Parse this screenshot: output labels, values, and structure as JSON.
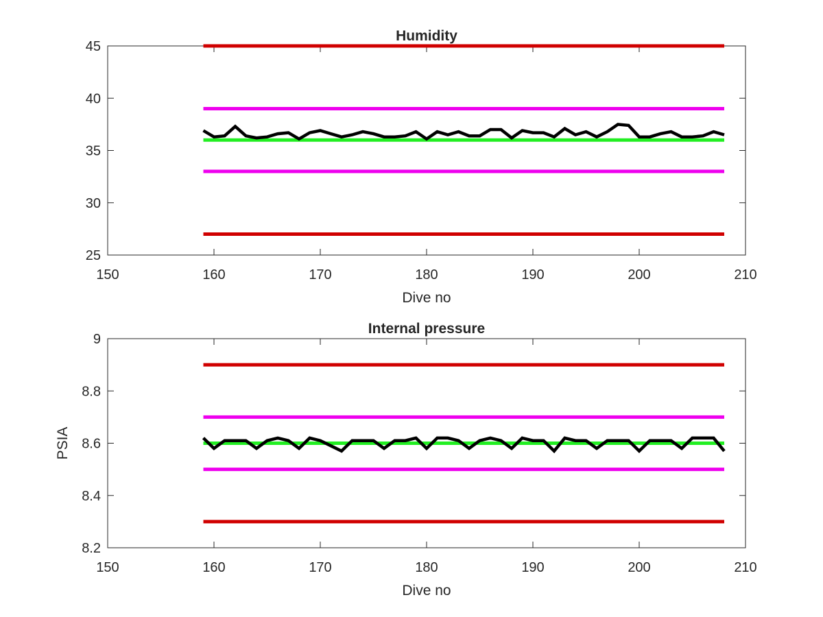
{
  "chart_data": [
    {
      "type": "line",
      "title": "Humidity",
      "xlabel": "Dive no",
      "ylabel": "",
      "xlim": [
        150,
        210
      ],
      "ylim": [
        25,
        45
      ],
      "xticks": [
        150,
        160,
        170,
        180,
        190,
        200,
        210
      ],
      "yticks": [
        25,
        30,
        35,
        40,
        45
      ],
      "grid": false,
      "series": [
        {
          "color": "#d00000",
          "x": [
            159,
            208
          ],
          "values": [
            45,
            45
          ]
        },
        {
          "color": "#ee00ee",
          "x": [
            159,
            208
          ],
          "values": [
            39,
            39
          ]
        },
        {
          "color": "#22ee22",
          "x": [
            159,
            208
          ],
          "values": [
            36,
            36
          ]
        },
        {
          "color": "#ee00ee",
          "x": [
            159,
            208
          ],
          "values": [
            33,
            33
          ]
        },
        {
          "color": "#d00000",
          "x": [
            159,
            208
          ],
          "values": [
            27,
            27
          ]
        },
        {
          "color": "#000000",
          "x": [
            159,
            160,
            161,
            162,
            163,
            164,
            165,
            166,
            167,
            168,
            169,
            170,
            171,
            172,
            173,
            174,
            175,
            176,
            177,
            178,
            179,
            180,
            181,
            182,
            183,
            184,
            185,
            186,
            187,
            188,
            189,
            190,
            191,
            192,
            193,
            194,
            195,
            196,
            197,
            198,
            199,
            200,
            201,
            202,
            203,
            204,
            205,
            206,
            207,
            208
          ],
          "values": [
            36.9,
            36.3,
            36.4,
            37.3,
            36.4,
            36.2,
            36.3,
            36.6,
            36.7,
            36.1,
            36.7,
            36.9,
            36.6,
            36.3,
            36.5,
            36.8,
            36.6,
            36.3,
            36.3,
            36.4,
            36.8,
            36.1,
            36.8,
            36.5,
            36.8,
            36.4,
            36.4,
            37.0,
            37.0,
            36.2,
            36.9,
            36.7,
            36.7,
            36.3,
            37.1,
            36.5,
            36.8,
            36.3,
            36.8,
            37.5,
            37.4,
            36.3,
            36.3,
            36.6,
            36.8,
            36.3,
            36.3,
            36.4,
            36.8,
            36.5
          ]
        }
      ]
    },
    {
      "type": "line",
      "title": "Internal pressure",
      "xlabel": "Dive no",
      "ylabel": "PSIA",
      "xlim": [
        150,
        210
      ],
      "ylim": [
        8.2,
        9
      ],
      "xticks": [
        150,
        160,
        170,
        180,
        190,
        200,
        210
      ],
      "yticks": [
        8.2,
        8.4,
        8.6,
        8.8,
        9
      ],
      "grid": false,
      "series": [
        {
          "color": "#d00000",
          "x": [
            159,
            208
          ],
          "values": [
            8.9,
            8.9
          ]
        },
        {
          "color": "#ee00ee",
          "x": [
            159,
            208
          ],
          "values": [
            8.7,
            8.7
          ]
        },
        {
          "color": "#22ee22",
          "x": [
            159,
            208
          ],
          "values": [
            8.6,
            8.6
          ]
        },
        {
          "color": "#ee00ee",
          "x": [
            159,
            208
          ],
          "values": [
            8.5,
            8.5
          ]
        },
        {
          "color": "#d00000",
          "x": [
            159,
            208
          ],
          "values": [
            8.3,
            8.3
          ]
        },
        {
          "color": "#000000",
          "x": [
            159,
            160,
            161,
            162,
            163,
            164,
            165,
            166,
            167,
            168,
            169,
            170,
            171,
            172,
            173,
            174,
            175,
            176,
            177,
            178,
            179,
            180,
            181,
            182,
            183,
            184,
            185,
            186,
            187,
            188,
            189,
            190,
            191,
            192,
            193,
            194,
            195,
            196,
            197,
            198,
            199,
            200,
            201,
            202,
            203,
            204,
            205,
            206,
            207,
            208
          ],
          "values": [
            8.62,
            8.58,
            8.61,
            8.61,
            8.61,
            8.58,
            8.61,
            8.62,
            8.61,
            8.58,
            8.62,
            8.61,
            8.59,
            8.57,
            8.61,
            8.61,
            8.61,
            8.58,
            8.61,
            8.61,
            8.62,
            8.58,
            8.62,
            8.62,
            8.61,
            8.58,
            8.61,
            8.62,
            8.61,
            8.58,
            8.62,
            8.61,
            8.61,
            8.57,
            8.62,
            8.61,
            8.61,
            8.58,
            8.61,
            8.61,
            8.61,
            8.57,
            8.61,
            8.61,
            8.61,
            8.58,
            8.62,
            8.62,
            8.62,
            8.57
          ]
        }
      ]
    }
  ]
}
